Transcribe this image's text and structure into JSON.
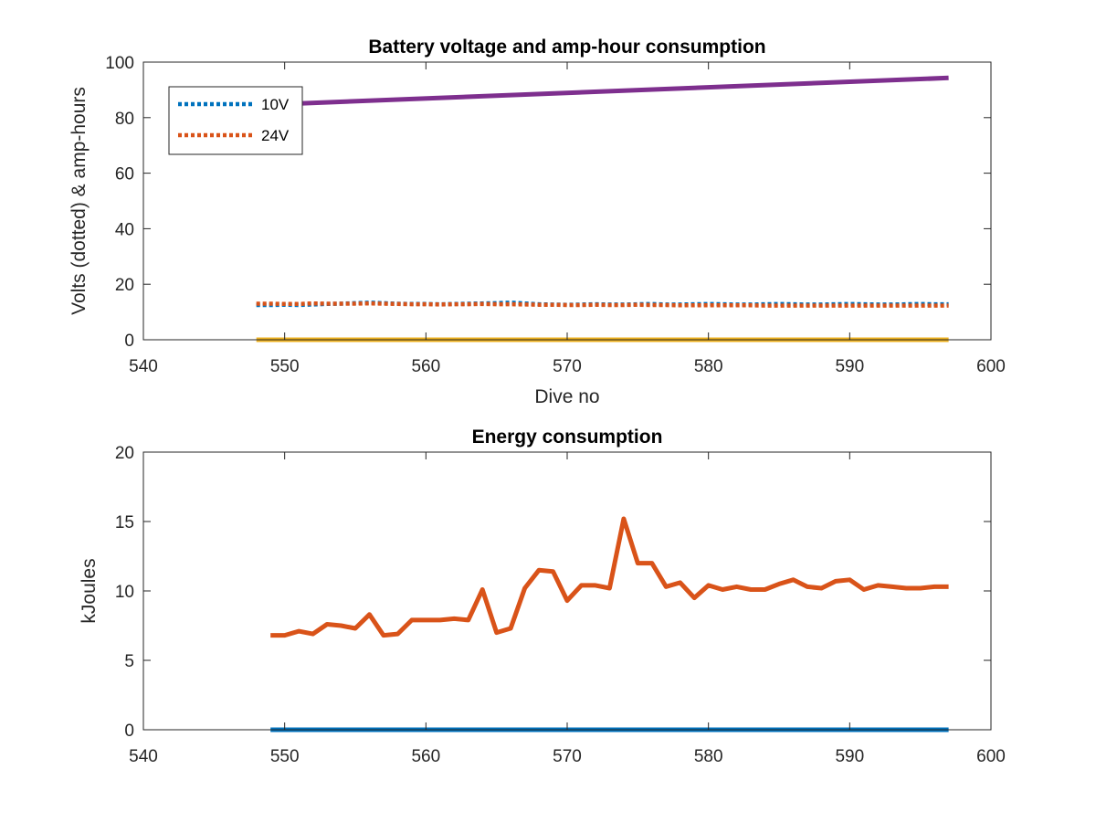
{
  "chart_data": [
    {
      "type": "line",
      "title": "Battery voltage and amp-hour consumption",
      "xlabel": "Dive no",
      "ylabel": "Volts (dotted) & amp-hours",
      "xlim": [
        540,
        600
      ],
      "ylim": [
        0,
        100
      ],
      "xticks": [
        540,
        550,
        560,
        570,
        580,
        590,
        600
      ],
      "yticks": [
        0,
        20,
        40,
        60,
        80,
        100
      ],
      "grid": false,
      "legend_position": "top-left",
      "series": [
        {
          "name": "10V",
          "style": "dotted",
          "color": "#0072BD",
          "x": [
            548,
            549,
            550,
            551,
            552,
            553,
            554,
            555,
            556,
            557,
            558,
            559,
            560,
            561,
            562,
            563,
            564,
            565,
            566,
            567,
            568,
            569,
            570,
            571,
            572,
            573,
            574,
            575,
            576,
            577,
            578,
            579,
            580,
            581,
            582,
            583,
            584,
            585,
            586,
            587,
            588,
            589,
            590,
            591,
            592,
            593,
            594,
            595,
            596,
            597
          ],
          "y": [
            12.5,
            12.5,
            12.6,
            12.5,
            12.7,
            12.9,
            13.0,
            13.2,
            13.4,
            13.2,
            13.0,
            12.9,
            12.9,
            12.8,
            12.9,
            13.0,
            13.1,
            13.2,
            13.4,
            13.1,
            12.8,
            12.7,
            12.6,
            12.7,
            12.8,
            12.7,
            12.7,
            12.8,
            12.9,
            12.7,
            12.7,
            12.8,
            12.9,
            12.8,
            12.7,
            12.7,
            12.8,
            12.9,
            12.8,
            12.7,
            12.7,
            12.8,
            12.9,
            12.8,
            12.7,
            12.7,
            12.8,
            12.9,
            12.8,
            12.8
          ]
        },
        {
          "name": "24V",
          "style": "dotted",
          "color": "#D95319",
          "x": [
            548,
            549,
            550,
            551,
            552,
            553,
            554,
            555,
            556,
            557,
            558,
            559,
            560,
            561,
            562,
            563,
            564,
            565,
            566,
            567,
            568,
            569,
            570,
            571,
            572,
            573,
            574,
            575,
            576,
            577,
            578,
            579,
            580,
            581,
            582,
            583,
            584,
            585,
            586,
            587,
            588,
            589,
            590,
            591,
            592,
            593,
            594,
            595,
            596,
            597
          ],
          "y": [
            13.0,
            13.0,
            12.9,
            12.9,
            13.1,
            13.0,
            13.0,
            13.0,
            13.1,
            13.0,
            12.9,
            12.8,
            12.8,
            12.7,
            12.8,
            12.8,
            12.9,
            12.8,
            12.8,
            12.7,
            12.6,
            12.6,
            12.5,
            12.5,
            12.6,
            12.5,
            12.5,
            12.6,
            12.5,
            12.5,
            12.4,
            12.4,
            12.4,
            12.4,
            12.4,
            12.4,
            12.3,
            12.3,
            12.3,
            12.3,
            12.3,
            12.3,
            12.3,
            12.3,
            12.3,
            12.3,
            12.3,
            12.3,
            12.3,
            12.3
          ]
        },
        {
          "style": "solid",
          "color": "#EDB120",
          "x": [
            548,
            597
          ],
          "y": [
            0,
            0
          ]
        },
        {
          "style": "solid",
          "color": "#7E2F8E",
          "x": [
            548,
            597
          ],
          "y": [
            84.5,
            94.3
          ]
        }
      ]
    },
    {
      "type": "line",
      "title": "Energy consumption",
      "xlabel": "",
      "ylabel": "kJoules",
      "xlim": [
        540,
        600
      ],
      "ylim": [
        0,
        20
      ],
      "xticks": [
        540,
        550,
        560,
        570,
        580,
        590,
        600
      ],
      "yticks": [
        0,
        5,
        10,
        15,
        20
      ],
      "grid": false,
      "series": [
        {
          "style": "solid",
          "color": "#0072BD",
          "x": [
            549,
            597
          ],
          "y": [
            0,
            0
          ]
        },
        {
          "style": "solid",
          "color": "#D95319",
          "x": [
            549,
            550,
            551,
            552,
            553,
            554,
            555,
            556,
            557,
            558,
            559,
            560,
            561,
            562,
            563,
            564,
            565,
            566,
            567,
            568,
            569,
            570,
            571,
            572,
            573,
            574,
            575,
            576,
            577,
            578,
            579,
            580,
            581,
            582,
            583,
            584,
            585,
            586,
            587,
            588,
            589,
            590,
            591,
            592,
            593,
            594,
            595,
            596,
            597
          ],
          "y": [
            6.8,
            6.8,
            7.1,
            6.9,
            7.6,
            7.5,
            7.3,
            8.3,
            6.8,
            6.9,
            7.9,
            7.9,
            7.9,
            8.0,
            7.9,
            10.1,
            7.0,
            7.3,
            10.2,
            11.5,
            11.4,
            9.3,
            10.4,
            10.4,
            10.2,
            15.2,
            12.0,
            12.0,
            10.3,
            10.6,
            9.5,
            10.4,
            10.1,
            10.3,
            10.1,
            10.1,
            10.5,
            10.8,
            10.3,
            10.2,
            10.7,
            10.8,
            10.1,
            10.4,
            10.3,
            10.2,
            10.2,
            10.3,
            10.3
          ]
        }
      ]
    }
  ]
}
